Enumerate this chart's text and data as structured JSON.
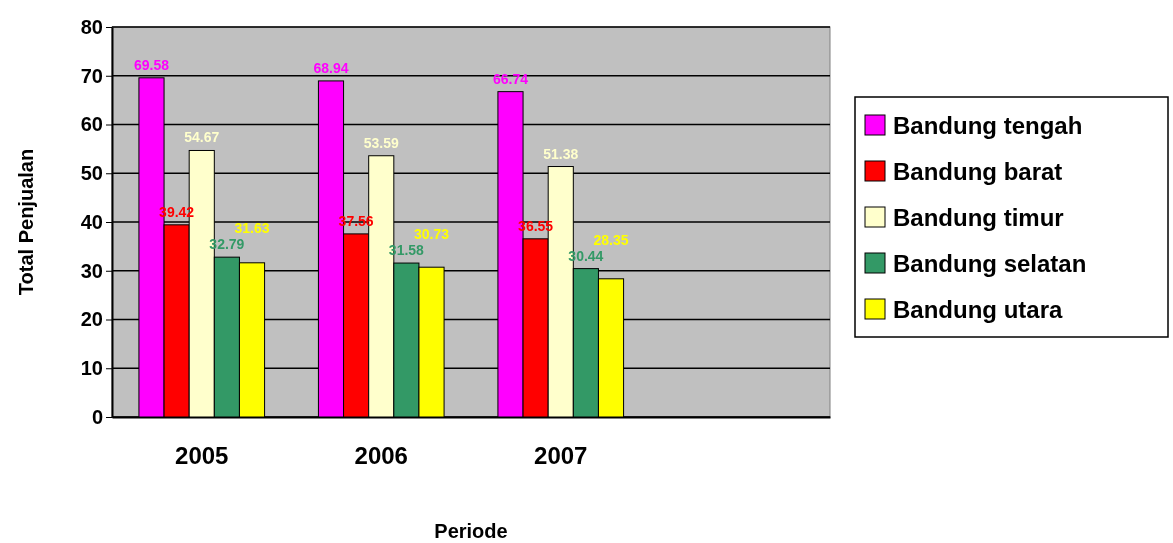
{
  "chart_data": {
    "type": "bar",
    "xlabel": "Periode",
    "ylabel": "Total Penjualan",
    "categories": [
      "2005",
      "2006",
      "2007",
      null
    ],
    "series": [
      {
        "name": "Bandung tengah",
        "color": "#ff00ff",
        "values": [
          69.58,
          68.94,
          66.74,
          null
        ]
      },
      {
        "name": "Bandung barat",
        "color": "#ff0000",
        "values": [
          39.42,
          37.56,
          36.55,
          null
        ]
      },
      {
        "name": "Bandung timur",
        "color": "#ffffcc",
        "values": [
          54.67,
          53.59,
          51.38,
          null
        ]
      },
      {
        "name": "Bandung selatan",
        "color": "#339966",
        "values": [
          32.79,
          31.58,
          30.44,
          null
        ]
      },
      {
        "name": "Bandung utara",
        "color": "#ffff00",
        "values": [
          31.63,
          30.73,
          28.35,
          null
        ]
      }
    ],
    "ylim": [
      0,
      80
    ],
    "yticks": [
      0,
      10,
      20,
      30,
      40,
      50,
      60,
      70,
      80
    ],
    "grid": "y",
    "legend": "right",
    "data_labels": true
  }
}
